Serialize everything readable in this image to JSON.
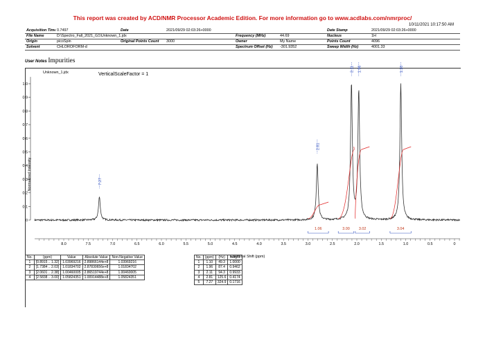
{
  "report": {
    "header": "This report was created by ACD/NMR Processor Academic Edition. For more information go to www.acdlabs.com/nmrproc/",
    "date": "10/11/2021 10:17:50 AM"
  },
  "info": {
    "acq_time_label": "Acquisition Time (sec)",
    "acq_time": "0.7497",
    "date_label": "Date",
    "date": "2021/09/29 02:03:26+0000",
    "date_stamp_label": "Date Stamp",
    "date_stamp": "2021/09/29 02:03:26+0000",
    "file_name_label": "File Name",
    "file_name": "D:\\Spectro_Fall_2021_G1\\Unknown_1.jdx",
    "frequency_label": "Frequency (MHz)",
    "frequency": "44.69",
    "nucleus_label": "Nucleus",
    "nucleus": "1H",
    "origin_label": "Origin",
    "origin": "picoSpin",
    "orig_points_label": "Original Points Count",
    "orig_points": "3000",
    "owner_label": "Owner",
    "owner": "My Name",
    "points_count_label": "Points Count",
    "points_count": "4096",
    "solvent_label": "Solvent",
    "solvent": "CHLOROFORM-d",
    "spectrum_offset_label": "Spectrum Offset (Hz)",
    "spectrum_offset": "-301.9352",
    "sweep_width_label": "Sweep Width (Hz)",
    "sweep_width": "4001.33"
  },
  "notes": {
    "label": "User Notes",
    "value": "Impurities"
  },
  "spectrum": {
    "file_tag": "Unknown_1.jdx",
    "scale_label": "VerticalScaleFactor = 1",
    "ylabel": "Normalized Intensity",
    "xlabel": "Chemical Shift (ppm)",
    "peak_labels": [
      "7.27",
      "2.81",
      "2.11",
      "1.96",
      "1.10"
    ],
    "integrals": [
      "1.06",
      "3.00",
      "3.02",
      "3.04"
    ],
    "y_ticks": [
      "0",
      "0.1",
      "0.2",
      "0.3",
      "0.4",
      "0.5",
      "0.6",
      "0.7",
      "0.8",
      "0.9",
      "1.0"
    ],
    "x_ticks": [
      "8.0",
      "7.5",
      "7.0",
      "6.5",
      "6.0",
      "5.5",
      "5.0",
      "4.5",
      "4.0",
      "3.5",
      "3.0",
      "2.5",
      "2.0",
      "1.5",
      "1.0",
      "0.5",
      "0"
    ]
  },
  "peak_table": {
    "headers": [
      "No.",
      "(ppm)",
      "Value",
      "Absolute Value",
      "Non-Negative Value"
    ],
    "rows": [
      [
        "1",
        "[0.8915 .. 1.32]",
        "1.03969216",
        "2.89866144e+8",
        "1.03969216"
      ],
      [
        "2",
        "[1.7384 .. 2.03]",
        "1.01834702",
        "2.87830656e+8",
        "1.01834702"
      ],
      [
        "3",
        "[2.0601 .. 2.38]",
        "1.00460005",
        "2.86519744e+8",
        "1.00460005"
      ],
      [
        "4",
        "[2.5838 .. 3.00]",
        "1.05824351",
        "1.00914488e+8",
        "1.05824351"
      ]
    ]
  },
  "shift_table": {
    "headers": [
      "No.",
      "(ppm)",
      "(Hz)",
      "Height"
    ],
    "rows": [
      [
        "1",
        "1.10",
        "49.3",
        "1.0000"
      ],
      [
        "2",
        "1.96",
        "87.4",
        "0.9462"
      ],
      [
        "3",
        "2.11",
        "94.3",
        "0.9933"
      ],
      [
        "4",
        "2.81",
        "125.6",
        "0.4174"
      ],
      [
        "5",
        "7.27",
        "324.9",
        "0.1716"
      ]
    ]
  }
}
